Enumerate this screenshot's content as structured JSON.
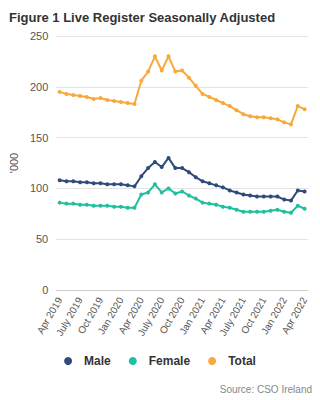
{
  "chart_data": {
    "type": "line",
    "title": "Figure 1 Live Register Seasonally Adjusted",
    "y_label": "'000",
    "source": "Source: CSO Ireland",
    "categories": [
      "Apr 2019",
      null,
      null,
      "July 2019",
      null,
      null,
      "Oct 2019",
      null,
      null,
      "Jan 2020",
      null,
      null,
      "Apr 2020",
      null,
      null,
      "July 2020",
      null,
      null,
      "Oct 2020",
      null,
      null,
      "Jan 2021",
      null,
      null,
      "Apr 2021",
      null,
      null,
      "July 2021",
      null,
      null,
      "Oct 2021",
      null,
      null,
      "Jan 2022",
      null,
      null,
      "Apr 2022"
    ],
    "series": [
      {
        "name": "Male",
        "color": "#2f4b7c",
        "values": [
          108,
          107,
          107,
          106,
          106,
          105,
          105,
          104,
          104,
          104,
          103,
          102,
          112,
          120,
          126,
          121,
          130,
          120,
          120,
          116,
          111,
          107,
          105,
          103,
          101,
          98,
          96,
          94,
          93,
          92,
          92,
          92,
          92,
          89,
          88,
          98,
          97
        ]
      },
      {
        "name": "Female",
        "color": "#1fbf9f",
        "values": [
          86,
          85,
          85,
          84,
          84,
          83,
          83,
          83,
          82,
          82,
          81,
          81,
          94,
          96,
          104,
          96,
          100,
          95,
          97,
          93,
          90,
          86,
          85,
          84,
          82,
          81,
          79,
          77,
          77,
          77,
          77,
          78,
          79,
          77,
          76,
          83,
          80
        ]
      },
      {
        "name": "Total",
        "color": "#f7a93b",
        "values": [
          195,
          193,
          192,
          191,
          190,
          188,
          189,
          187,
          186,
          185,
          184,
          183,
          206,
          215,
          230,
          216,
          230,
          215,
          216,
          209,
          201,
          193,
          190,
          187,
          184,
          181,
          177,
          173,
          171,
          170,
          170,
          169,
          168,
          165,
          163,
          181,
          178
        ]
      }
    ],
    "ylim": [
      0,
      250
    ],
    "yticks": [
      0,
      50,
      100,
      150,
      200,
      250
    ],
    "grid": true,
    "legend": "bottom",
    "marker": "circle"
  }
}
